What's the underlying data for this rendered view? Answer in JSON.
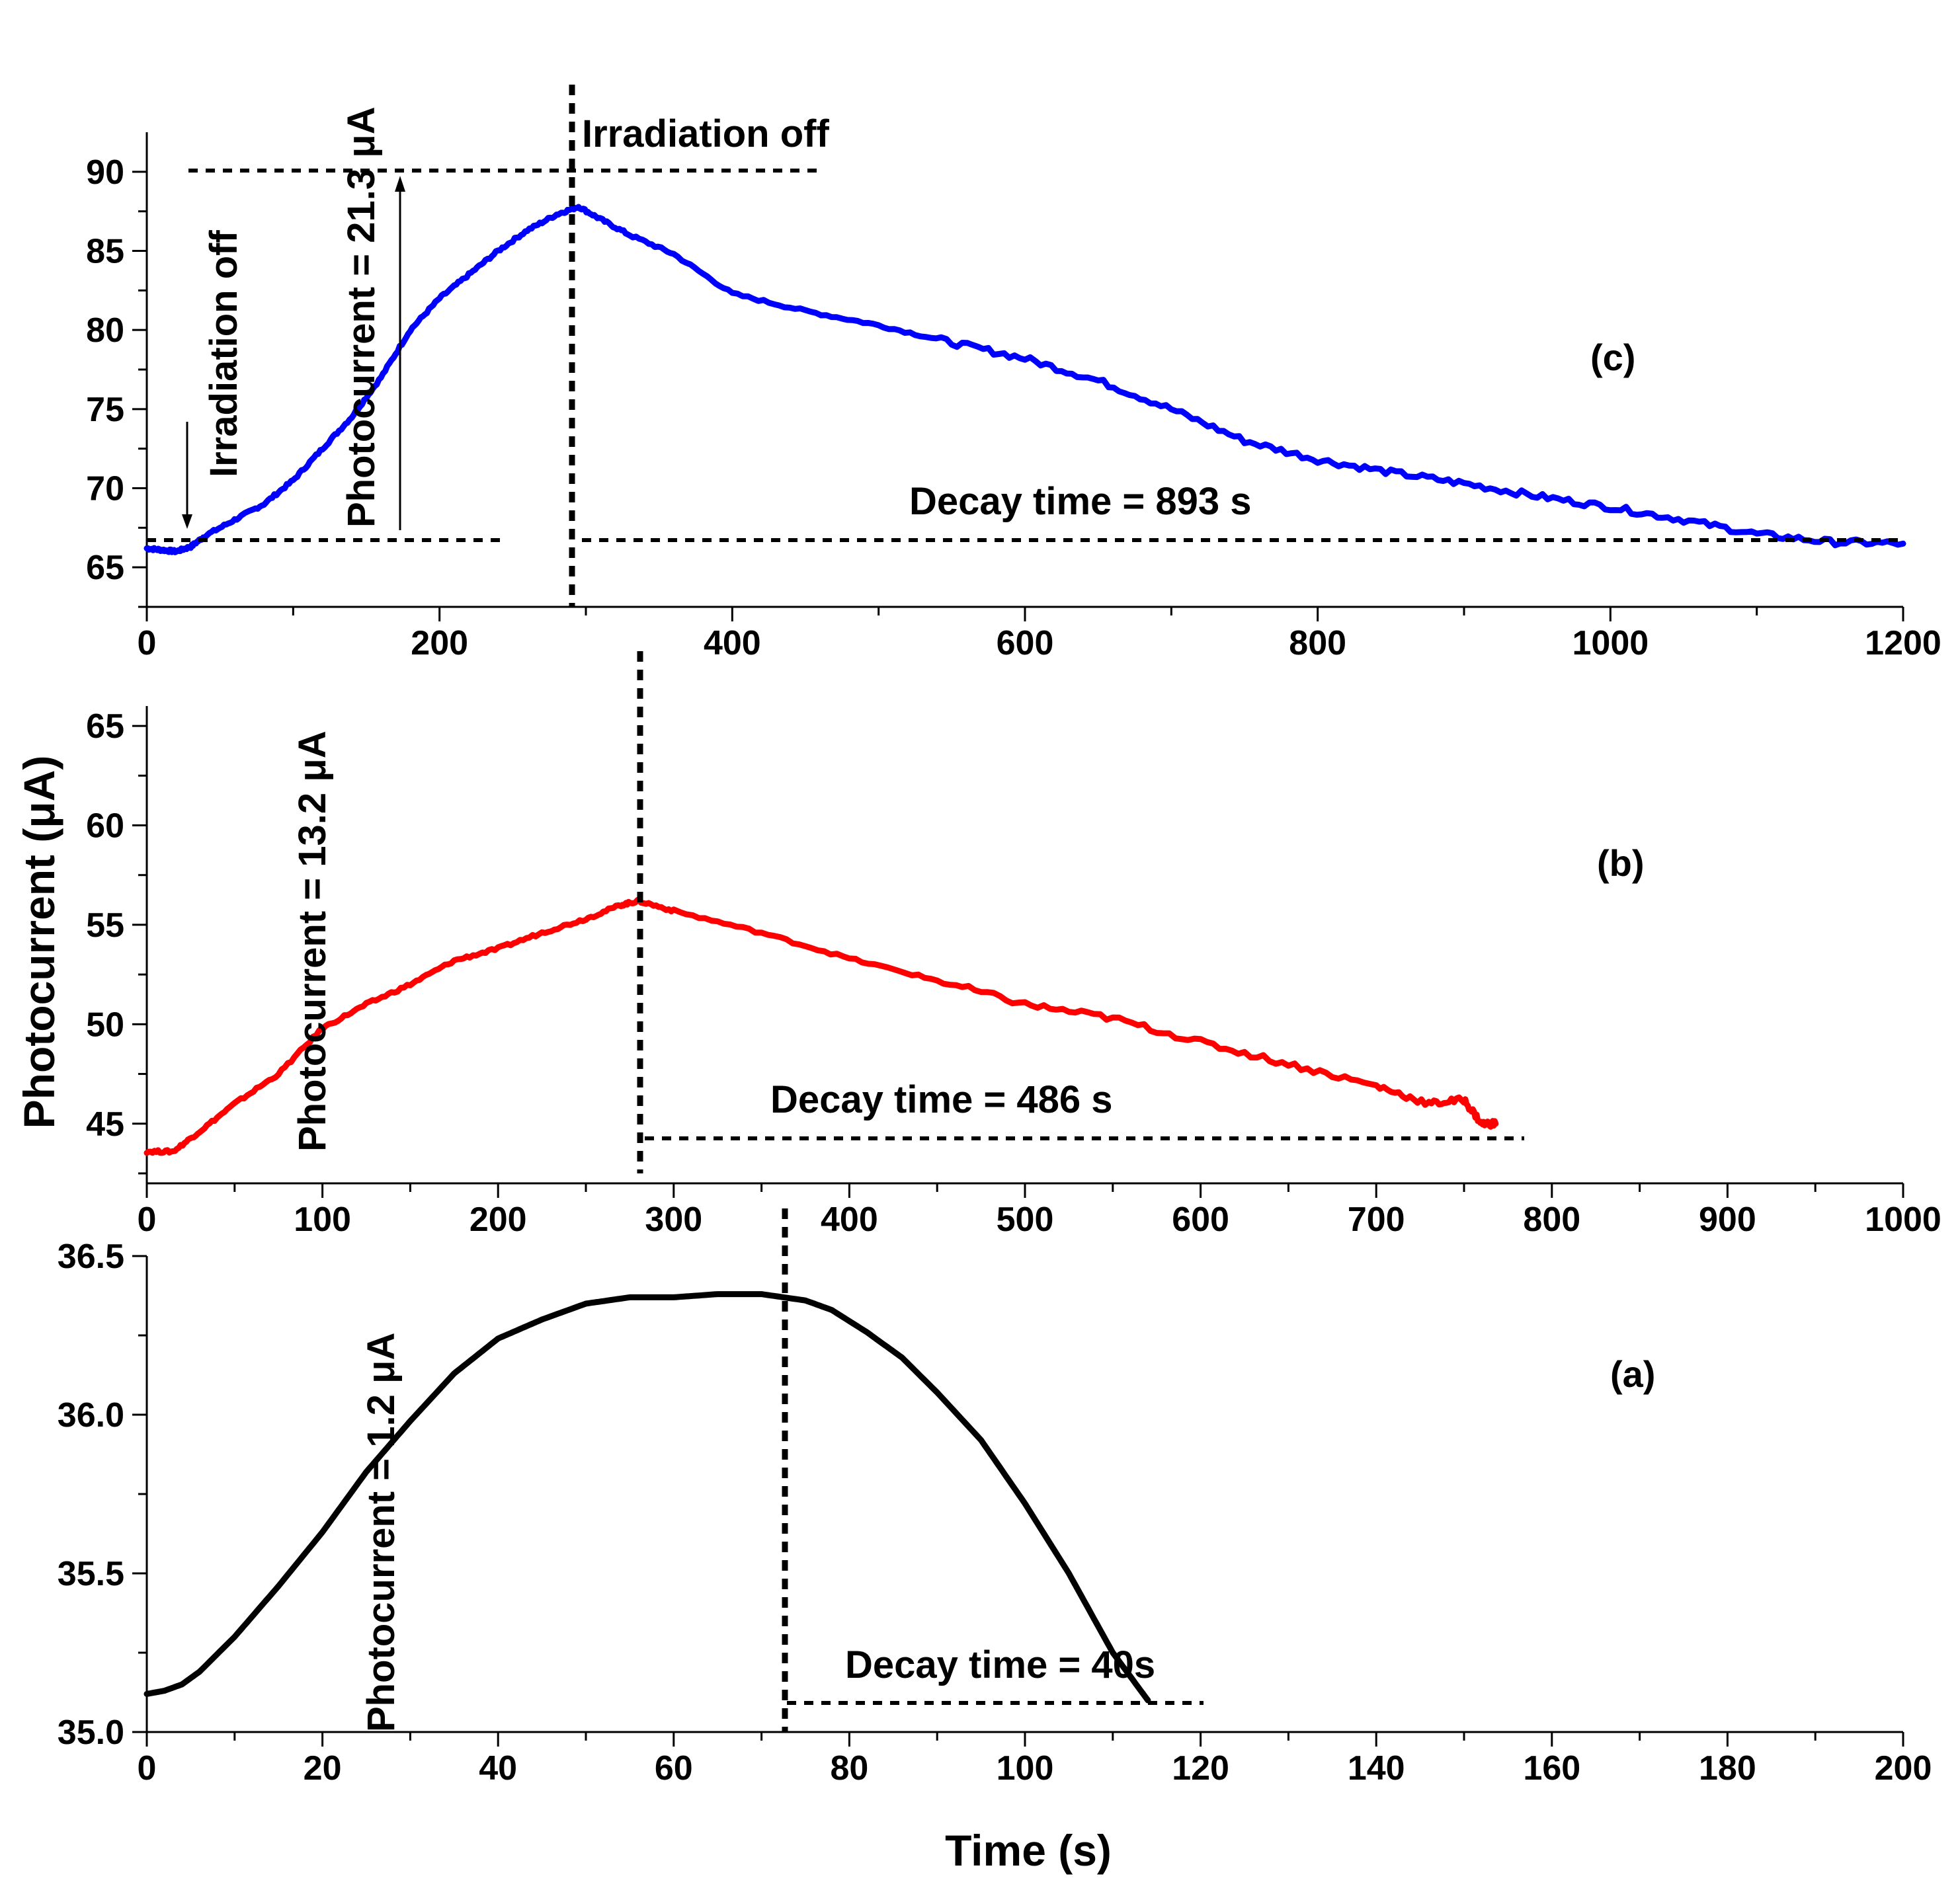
{
  "chart_data": [
    {
      "id": "c",
      "type": "line",
      "color": "#0000ff",
      "panel_label": "(c)",
      "xlim": [
        0,
        1200
      ],
      "ylim": [
        62.5,
        92.5
      ],
      "xticks": [
        0,
        200,
        400,
        600,
        800,
        1000,
        1200
      ],
      "xtick_labels": [
        "0",
        "200",
        "400",
        "600",
        "800",
        "1000",
        "1200"
      ],
      "yticks": [
        65,
        70,
        75,
        80,
        85,
        90
      ],
      "ytick_labels": [
        "65",
        "70",
        "75",
        "80",
        "85",
        "90"
      ],
      "series": [
        {
          "name": "panel c",
          "x": [
            0,
            10,
            20,
            30,
            40,
            60,
            80,
            100,
            120,
            140,
            160,
            180,
            200,
            220,
            240,
            260,
            280,
            295,
            310,
            330,
            360,
            400,
            450,
            500,
            550,
            600,
            650,
            700,
            750,
            800,
            850,
            900,
            950,
            1000,
            1050,
            1100,
            1150,
            1200
          ],
          "y": [
            66.2,
            66.1,
            66.0,
            66.3,
            67.0,
            68.0,
            69.0,
            70.5,
            72.5,
            74.5,
            77.0,
            80.0,
            82.0,
            83.5,
            85.0,
            86.3,
            87.3,
            87.8,
            87.0,
            86.0,
            84.8,
            82.3,
            81.2,
            80.3,
            79.2,
            78.2,
            76.8,
            75.0,
            73.0,
            71.8,
            71.0,
            70.3,
            69.5,
            68.8,
            68.0,
            67.1,
            66.6,
            66.5
          ]
        }
      ],
      "annotations": {
        "irradiation_left": "Irradiation off",
        "irradiation_top": "Irradiation off",
        "photocurrent": "Photocurrent = 21.3 μA",
        "decay": "Decay time = 893 s"
      }
    },
    {
      "id": "b",
      "type": "line",
      "color": "#ff0000",
      "panel_label": "(b)",
      "xlim": [
        0,
        1000
      ],
      "ylim": [
        42,
        66
      ],
      "xticks": [
        0,
        100,
        200,
        300,
        400,
        500,
        600,
        700,
        800,
        900,
        1000
      ],
      "xtick_labels": [
        "0",
        "100",
        "200",
        "300",
        "400",
        "500",
        "600",
        "700",
        "800",
        "900",
        "1000"
      ],
      "yticks": [
        45,
        50,
        55,
        60,
        65
      ],
      "ytick_labels": [
        "45",
        "50",
        "55",
        "60",
        "65"
      ],
      "series": [
        {
          "name": "panel b",
          "x": [
            0,
            15,
            30,
            50,
            75,
            100,
            125,
            150,
            175,
            200,
            225,
            250,
            270,
            280,
            300,
            350,
            400,
            450,
            500,
            550,
            600,
            650,
            700,
            730,
            750,
            760,
            768
          ],
          "y": [
            43.6,
            43.6,
            44.6,
            46.0,
            47.5,
            49.8,
            51.0,
            52.0,
            53.2,
            53.8,
            54.6,
            55.3,
            56.0,
            56.2,
            55.7,
            54.6,
            53.3,
            52.2,
            51.0,
            50.3,
            49.1,
            48.0,
            46.9,
            46.0,
            46.2,
            45.0,
            45.0
          ]
        }
      ],
      "annotations": {
        "photocurrent": "Photocurrent = 13.2 μA",
        "decay": "Decay time = 486 s"
      }
    },
    {
      "id": "a",
      "type": "line",
      "color": "#000000",
      "panel_label": "(a)",
      "xlim": [
        0,
        200
      ],
      "ylim": [
        35.0,
        36.5
      ],
      "xticks": [
        0,
        20,
        40,
        60,
        80,
        100,
        120,
        140,
        160,
        180,
        200
      ],
      "xtick_labels": [
        "0",
        "20",
        "40",
        "60",
        "80",
        "100",
        "120",
        "140",
        "160",
        "180",
        "200"
      ],
      "yticks": [
        35.0,
        35.5,
        36.0,
        36.5
      ],
      "ytick_labels": [
        "35.0",
        "35.5",
        "36.0",
        "36.5"
      ],
      "series": [
        {
          "name": "panel a",
          "x": [
            0,
            2,
            4,
            6,
            10,
            15,
            20,
            25,
            30,
            35,
            40,
            45,
            50,
            55,
            60,
            65,
            70,
            75,
            78,
            82,
            86,
            90,
            95,
            100,
            105,
            110,
            114
          ],
          "y": [
            35.12,
            35.13,
            35.15,
            35.19,
            35.3,
            35.46,
            35.63,
            35.82,
            35.98,
            36.13,
            36.24,
            36.3,
            36.35,
            36.37,
            36.37,
            36.38,
            36.38,
            36.36,
            36.33,
            36.26,
            36.18,
            36.07,
            35.92,
            35.72,
            35.5,
            35.25,
            35.1
          ]
        }
      ],
      "annotations": {
        "photocurrent": "Photocurrent = 1.2 μA",
        "decay": "Decay time = 40s"
      }
    }
  ],
  "axes": {
    "xlabel": "Time (s)",
    "ylabel": "Photocurrent (μA)"
  }
}
